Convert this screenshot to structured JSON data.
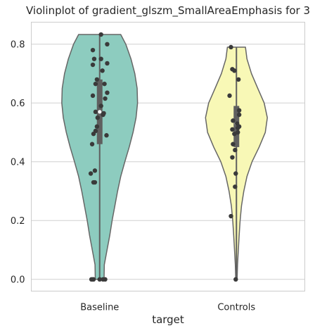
{
  "chart_data": {
    "type": "violin",
    "title": "Violinplot of gradient_glszm_SmallAreaEmphasis for 3",
    "xlabel": "target",
    "ylabel": "",
    "categories": [
      "Baseline",
      "Controls"
    ],
    "ylim": [
      -0.04,
      0.875
    ],
    "yticks": [
      "0.0",
      "0.2",
      "0.4",
      "0.6",
      "0.8"
    ],
    "grid": "horizontal",
    "colors": {
      "Baseline": "#8dccbf",
      "Controls": "#f8f8b6",
      "outline": "#666666",
      "points": "#3a3a3a",
      "background": "#ffffff",
      "grid": "#d0d0d0"
    },
    "violins": [
      {
        "category": "Baseline",
        "profile": [
          [
            0.0,
            0.032
          ],
          [
            0.05,
            0.034
          ],
          [
            0.1,
            0.054
          ],
          [
            0.15,
            0.074
          ],
          [
            0.2,
            0.091
          ],
          [
            0.25,
            0.111
          ],
          [
            0.3,
            0.131
          ],
          [
            0.35,
            0.154
          ],
          [
            0.4,
            0.184
          ],
          [
            0.45,
            0.216
          ],
          [
            0.5,
            0.244
          ],
          [
            0.55,
            0.266
          ],
          [
            0.6,
            0.277
          ],
          [
            0.65,
            0.274
          ],
          [
            0.7,
            0.257
          ],
          [
            0.75,
            0.229
          ],
          [
            0.8,
            0.191
          ],
          [
            0.833,
            0.154
          ]
        ],
        "box": {
          "whisker_low": 0.0,
          "q1": 0.46,
          "median": 0.57,
          "q3": 0.68,
          "whisker_high": 0.833
        },
        "points": [
          [
            0.01,
            0.833
          ],
          [
            0.055,
            0.8
          ],
          [
            -0.05,
            0.78
          ],
          [
            -0.04,
            0.75
          ],
          [
            0.01,
            0.75
          ],
          [
            -0.05,
            0.73
          ],
          [
            0.055,
            0.735
          ],
          [
            0.02,
            0.71
          ],
          [
            -0.02,
            0.68
          ],
          [
            -0.03,
            0.665
          ],
          [
            0.035,
            0.665
          ],
          [
            0.055,
            0.635
          ],
          [
            0.04,
            0.615
          ],
          [
            -0.05,
            0.625
          ],
          [
            0.01,
            0.59
          ],
          [
            0.03,
            0.565
          ],
          [
            -0.03,
            0.57
          ],
          [
            0.025,
            0.56
          ],
          [
            -0.015,
            0.55
          ],
          [
            -0.02,
            0.52
          ],
          [
            -0.03,
            0.505
          ],
          [
            -0.045,
            0.495
          ],
          [
            0.05,
            0.49
          ],
          [
            -0.055,
            0.46
          ],
          [
            -0.035,
            0.37
          ],
          [
            -0.065,
            0.36
          ],
          [
            -0.035,
            0.33
          ],
          [
            -0.045,
            0.33
          ],
          [
            -0.05,
            0.0
          ],
          [
            -0.045,
            0.0
          ],
          [
            0.0,
            0.0
          ],
          [
            0.025,
            0.0
          ],
          [
            0.04,
            0.0
          ],
          [
            -0.06,
            0.0
          ]
        ]
      },
      {
        "category": "Controls",
        "profile": [
          [
            0.0,
            0.005
          ],
          [
            0.05,
            0.008
          ],
          [
            0.1,
            0.014
          ],
          [
            0.15,
            0.02
          ],
          [
            0.2,
            0.027
          ],
          [
            0.25,
            0.037
          ],
          [
            0.3,
            0.054
          ],
          [
            0.35,
            0.077
          ],
          [
            0.4,
            0.114
          ],
          [
            0.45,
            0.166
          ],
          [
            0.5,
            0.211
          ],
          [
            0.55,
            0.226
          ],
          [
            0.6,
            0.203
          ],
          [
            0.65,
            0.156
          ],
          [
            0.7,
            0.11
          ],
          [
            0.75,
            0.077
          ],
          [
            0.79,
            0.066
          ]
        ],
        "box": {
          "whisker_low": 0.0,
          "q1": 0.45,
          "median": 0.53,
          "q3": 0.59,
          "whisker_high": 0.79
        },
        "points": [
          [
            -0.04,
            0.79
          ],
          [
            -0.03,
            0.715
          ],
          [
            -0.015,
            0.71
          ],
          [
            0.015,
            0.68
          ],
          [
            -0.05,
            0.625
          ],
          [
            0.02,
            0.575
          ],
          [
            0.02,
            0.56
          ],
          [
            -0.025,
            0.54
          ],
          [
            0.005,
            0.53
          ],
          [
            0.02,
            0.52
          ],
          [
            0.01,
            0.515
          ],
          [
            -0.03,
            0.51
          ],
          [
            0.01,
            0.5
          ],
          [
            -0.015,
            0.495
          ],
          [
            -0.025,
            0.46
          ],
          [
            -0.01,
            0.44
          ],
          [
            -0.03,
            0.415
          ],
          [
            -0.005,
            0.36
          ],
          [
            -0.01,
            0.315
          ],
          [
            -0.04,
            0.215
          ],
          [
            -0.005,
            0.0
          ]
        ]
      }
    ]
  }
}
